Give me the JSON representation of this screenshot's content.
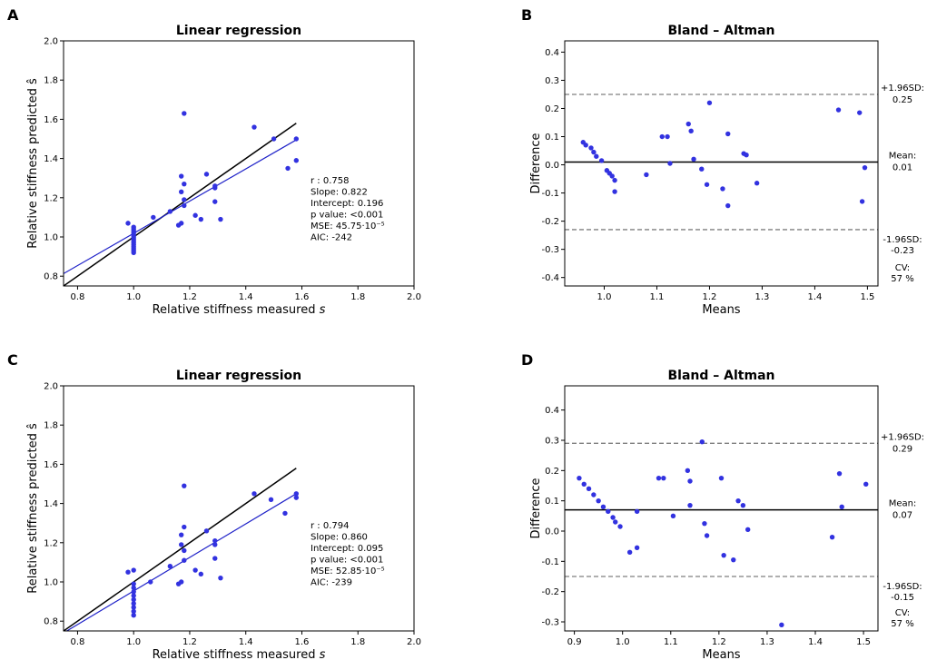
{
  "chart_data": [
    {
      "panel": "A",
      "type": "scatter",
      "title": "Linear regression",
      "xlabel": "Relative stiffness measured s",
      "ylabel": "Relative stiffness predicted ŝ",
      "xlim": [
        0.75,
        2.0
      ],
      "ylim": [
        0.75,
        2.0
      ],
      "xticks": [
        "0.8",
        "1.0",
        "1.2",
        "1.4",
        "1.6",
        "1.8",
        "2.0"
      ],
      "yticks": [
        "0.8",
        "1.0",
        "1.2",
        "1.4",
        "1.6",
        "1.8",
        "2.0"
      ],
      "identity_line": {
        "x": [
          0.75,
          1.58
        ],
        "y": [
          0.75,
          1.58
        ]
      },
      "fit_line": {
        "x": [
          0.75,
          1.58
        ],
        "y": [
          0.813,
          1.495
        ]
      },
      "points": [
        [
          0.98,
          1.07
        ],
        [
          1.0,
          1.05
        ],
        [
          1.0,
          1.04
        ],
        [
          1.0,
          1.03
        ],
        [
          1.0,
          1.02
        ],
        [
          1.0,
          1.01
        ],
        [
          1.0,
          1.0
        ],
        [
          1.0,
          0.99
        ],
        [
          1.0,
          0.98
        ],
        [
          1.0,
          0.97
        ],
        [
          1.0,
          0.96
        ],
        [
          1.0,
          0.95
        ],
        [
          1.0,
          0.94
        ],
        [
          1.0,
          0.93
        ],
        [
          1.0,
          0.92
        ],
        [
          1.07,
          1.1
        ],
        [
          1.13,
          1.13
        ],
        [
          1.16,
          1.06
        ],
        [
          1.17,
          1.31
        ],
        [
          1.17,
          1.23
        ],
        [
          1.18,
          1.63
        ],
        [
          1.18,
          1.27
        ],
        [
          1.18,
          1.19
        ],
        [
          1.18,
          1.16
        ],
        [
          1.17,
          1.07
        ],
        [
          1.22,
          1.11
        ],
        [
          1.24,
          1.09
        ],
        [
          1.26,
          1.32
        ],
        [
          1.29,
          1.26
        ],
        [
          1.29,
          1.25
        ],
        [
          1.29,
          1.18
        ],
        [
          1.31,
          1.09
        ],
        [
          1.43,
          1.56
        ],
        [
          1.5,
          1.5
        ],
        [
          1.55,
          1.35
        ],
        [
          1.58,
          1.5
        ],
        [
          1.58,
          1.39
        ]
      ],
      "stats": [
        "r : 0.758",
        "Slope: 0.822",
        "Intercept: 0.196",
        "p value: <0.001",
        "MSE: 45.75·10⁻⁵",
        "AIC: -242"
      ]
    },
    {
      "panel": "B",
      "type": "scatter",
      "title": "Bland – Altman",
      "xlabel": "Means",
      "ylabel": "Difference",
      "xlim": [
        0.925,
        1.52
      ],
      "ylim": [
        -0.43,
        0.44
      ],
      "xticks": [
        "1.0",
        "1.1",
        "1.2",
        "1.3",
        "1.4",
        "1.5"
      ],
      "yticks": [
        "0.4",
        "0.3",
        "0.2",
        "0.1",
        "0.0",
        "-0.1",
        "-0.2",
        "-0.3",
        "-0.4"
      ],
      "mean_line": 0.01,
      "upper_loa": 0.25,
      "lower_loa": -0.23,
      "points": [
        [
          0.96,
          0.08
        ],
        [
          0.965,
          0.07
        ],
        [
          0.975,
          0.06
        ],
        [
          0.98,
          0.045
        ],
        [
          0.985,
          0.03
        ],
        [
          0.995,
          0.015
        ],
        [
          1.005,
          -0.02
        ],
        [
          1.01,
          -0.03
        ],
        [
          1.015,
          -0.04
        ],
        [
          1.02,
          -0.055
        ],
        [
          1.02,
          -0.095
        ],
        [
          1.08,
          -0.035
        ],
        [
          1.11,
          0.1
        ],
        [
          1.12,
          0.1
        ],
        [
          1.125,
          0.005
        ],
        [
          1.16,
          0.145
        ],
        [
          1.165,
          0.12
        ],
        [
          1.17,
          0.02
        ],
        [
          1.185,
          -0.015
        ],
        [
          1.195,
          -0.07
        ],
        [
          1.2,
          0.22
        ],
        [
          1.225,
          -0.085
        ],
        [
          1.235,
          0.11
        ],
        [
          1.235,
          -0.145
        ],
        [
          1.265,
          0.04
        ],
        [
          1.27,
          0.035
        ],
        [
          1.29,
          -0.065
        ],
        [
          1.445,
          0.195
        ],
        [
          1.485,
          0.185
        ],
        [
          1.49,
          -0.13
        ],
        [
          1.495,
          -0.01
        ]
      ],
      "side_labels": {
        "upper": "+1.96SD:",
        "upper_value": "0.25",
        "mean": "Mean:",
        "mean_value": "0.01",
        "lower": "-1.96SD:",
        "lower_value": "-0.23",
        "cv": "CV:",
        "cv_value": "57 %"
      }
    },
    {
      "panel": "C",
      "type": "scatter",
      "title": "Linear regression",
      "xlabel": "Relative stiffness measured s",
      "ylabel": "Relative stiffness predicted ŝ",
      "xlim": [
        0.75,
        2.0
      ],
      "ylim": [
        0.75,
        2.0
      ],
      "xticks": [
        "0.8",
        "1.0",
        "1.2",
        "1.4",
        "1.6",
        "1.8",
        "2.0"
      ],
      "yticks": [
        "0.8",
        "1.0",
        "1.2",
        "1.4",
        "1.6",
        "1.8",
        "2.0"
      ],
      "identity_line": {
        "x": [
          0.75,
          1.58
        ],
        "y": [
          0.75,
          1.58
        ]
      },
      "fit_line": {
        "x": [
          0.75,
          1.58
        ],
        "y": [
          0.74,
          1.45
        ]
      },
      "points": [
        [
          0.98,
          1.05
        ],
        [
          1.0,
          1.06
        ],
        [
          1.0,
          0.99
        ],
        [
          1.0,
          0.97
        ],
        [
          1.0,
          0.95
        ],
        [
          1.0,
          0.93
        ],
        [
          1.0,
          0.91
        ],
        [
          1.0,
          0.89
        ],
        [
          1.0,
          0.87
        ],
        [
          1.0,
          0.85
        ],
        [
          1.0,
          0.83
        ],
        [
          1.06,
          1.0
        ],
        [
          1.13,
          1.08
        ],
        [
          1.16,
          0.99
        ],
        [
          1.17,
          1.24
        ],
        [
          1.17,
          1.19
        ],
        [
          1.18,
          1.49
        ],
        [
          1.18,
          1.28
        ],
        [
          1.18,
          1.16
        ],
        [
          1.18,
          1.11
        ],
        [
          1.17,
          1.0
        ],
        [
          1.22,
          1.06
        ],
        [
          1.24,
          1.04
        ],
        [
          1.26,
          1.26
        ],
        [
          1.29,
          1.21
        ],
        [
          1.29,
          1.19
        ],
        [
          1.29,
          1.12
        ],
        [
          1.31,
          1.02
        ],
        [
          1.43,
          1.45
        ],
        [
          1.49,
          1.42
        ],
        [
          1.54,
          1.35
        ],
        [
          1.58,
          1.45
        ],
        [
          1.58,
          1.43
        ]
      ],
      "stats": [
        "r : 0.794",
        "Slope: 0.860",
        "Intercept: 0.095",
        "p value: <0.001",
        "MSE: 52.85·10⁻⁵",
        "AIC: -239"
      ]
    },
    {
      "panel": "D",
      "type": "scatter",
      "title": "Bland – Altman",
      "xlabel": "Means",
      "ylabel": "Difference",
      "xlim": [
        0.88,
        1.53
      ],
      "ylim": [
        -0.33,
        0.48
      ],
      "xticks": [
        "0.9",
        "1.0",
        "1.1",
        "1.2",
        "1.3",
        "1.4",
        "1.5"
      ],
      "yticks": [
        "0.4",
        "0.3",
        "0.2",
        "0.1",
        "0.0",
        "-0.1",
        "-0.2",
        "-0.3"
      ],
      "mean_line": 0.07,
      "upper_loa": 0.29,
      "lower_loa": -0.15,
      "points": [
        [
          0.91,
          0.175
        ],
        [
          0.92,
          0.155
        ],
        [
          0.93,
          0.14
        ],
        [
          0.94,
          0.12
        ],
        [
          0.95,
          0.1
        ],
        [
          0.96,
          0.08
        ],
        [
          0.97,
          0.065
        ],
        [
          0.98,
          0.045
        ],
        [
          0.985,
          0.03
        ],
        [
          0.995,
          0.015
        ],
        [
          1.015,
          -0.07
        ],
        [
          1.03,
          -0.055
        ],
        [
          1.03,
          0.065
        ],
        [
          1.075,
          0.175
        ],
        [
          1.085,
          0.175
        ],
        [
          1.105,
          0.05
        ],
        [
          1.135,
          0.2
        ],
        [
          1.14,
          0.165
        ],
        [
          1.14,
          0.085
        ],
        [
          1.165,
          0.295
        ],
        [
          1.17,
          0.025
        ],
        [
          1.175,
          -0.015
        ],
        [
          1.205,
          0.175
        ],
        [
          1.21,
          -0.08
        ],
        [
          1.23,
          -0.095
        ],
        [
          1.24,
          0.1
        ],
        [
          1.25,
          0.085
        ],
        [
          1.26,
          0.005
        ],
        [
          1.33,
          -0.31
        ],
        [
          1.435,
          -0.02
        ],
        [
          1.45,
          0.19
        ],
        [
          1.455,
          0.08
        ],
        [
          1.505,
          0.155
        ]
      ],
      "side_labels": {
        "upper": "+1.96SD:",
        "upper_value": "0.29",
        "mean": "Mean:",
        "mean_value": "0.07",
        "lower": "-1.96SD:",
        "lower_value": "-0.15",
        "cv": "CV:",
        "cv_value": "57 %"
      }
    }
  ],
  "colors": {
    "point": "#3232e0",
    "fit": "#1f22c8",
    "identity": "#000000",
    "mean": "#000000",
    "loa": "#7f7f7f"
  }
}
